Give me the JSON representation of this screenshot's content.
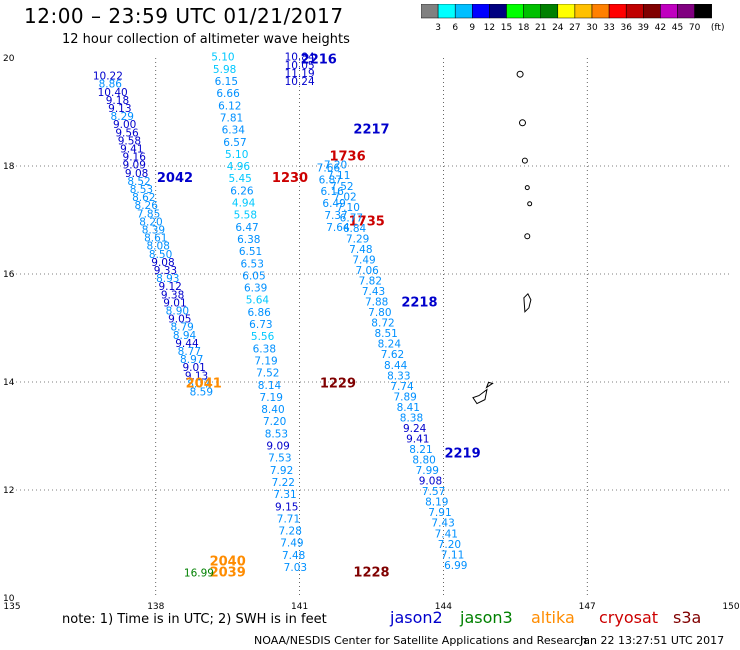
{
  "header": {
    "title": "12:00 – 23:59 UTC 01/21/2017",
    "subtitle": "12 hour collection of altimeter wave heights"
  },
  "legend": {
    "colors": [
      "#808080",
      "#00ffff",
      "#00bfff",
      "#0000ff",
      "#000080",
      "#00ff00",
      "#00c000",
      "#008000",
      "#ffff00",
      "#ffc000",
      "#ff8000",
      "#ff0000",
      "#c00000",
      "#800000",
      "#c000c0",
      "#800080",
      "#000000"
    ],
    "labels": [
      "3",
      "6",
      "9",
      "12",
      "15",
      "18",
      "21",
      "24",
      "27",
      "30",
      "33",
      "36",
      "39",
      "42",
      "45",
      "70",
      "(ft)"
    ]
  },
  "footer": {
    "note": "note: 1) Time is in UTC; 2) SWH is in feet",
    "satellites": [
      {
        "name": "jason2",
        "color": "#0000cc"
      },
      {
        "name": "jason3",
        "color": "#008000"
      },
      {
        "name": "altika",
        "color": "#ff8c00"
      },
      {
        "name": "cryosat",
        "color": "#cc0000"
      },
      {
        "name": "s3a",
        "color": "#800000"
      }
    ],
    "credit": "NOAA/NESDIS Center for Satellite Applications and Research",
    "timestamp": "Jan 22 13:27:51 UTC 2017"
  },
  "chart_data": {
    "type": "scatter",
    "title": "12:00 – 23:59 UTC 01/21/2017",
    "subtitle": "12 hour collection of altimeter wave heights",
    "xlim": [
      135,
      150
    ],
    "ylim": [
      10,
      20
    ],
    "x_ticks": [
      135,
      138,
      141,
      144,
      147,
      150
    ],
    "y_ticks": [
      10,
      12,
      14,
      16,
      18,
      20
    ],
    "grid": true,
    "units": "ft",
    "tracks": [
      {
        "satellite": "jason2",
        "label": "2042",
        "label_pos": [
          138.4,
          17.7
        ],
        "points": [
          [
            137.0,
            19.6,
            "10.22"
          ],
          [
            137.05,
            19.45,
            "8.86"
          ],
          [
            137.1,
            19.3,
            "10.40"
          ],
          [
            137.2,
            19.15,
            "9.18"
          ],
          [
            137.25,
            19.0,
            "9.13"
          ],
          [
            137.3,
            18.85,
            "8.29"
          ],
          [
            137.35,
            18.7,
            "9.00"
          ],
          [
            137.4,
            18.55,
            "9.56"
          ],
          [
            137.45,
            18.4,
            "9.58"
          ],
          [
            137.5,
            18.25,
            "9.41"
          ],
          [
            137.55,
            18.1,
            "9.16"
          ],
          [
            137.55,
            17.95,
            "9.09"
          ],
          [
            137.6,
            17.8,
            "9.08"
          ],
          [
            137.65,
            17.65,
            "8.52"
          ],
          [
            137.7,
            17.5,
            "8.53"
          ],
          [
            137.75,
            17.35,
            "8.62"
          ],
          [
            137.8,
            17.2,
            "8.26"
          ],
          [
            137.85,
            17.05,
            "7.85"
          ],
          [
            137.9,
            16.9,
            "8.20"
          ],
          [
            137.95,
            16.75,
            "8.39"
          ],
          [
            138.0,
            16.6,
            "8.61"
          ],
          [
            138.05,
            16.45,
            "8.08"
          ],
          [
            138.1,
            16.3,
            "8.50"
          ],
          [
            138.15,
            16.15,
            "9.08"
          ],
          [
            138.2,
            16.0,
            "9.33"
          ],
          [
            138.25,
            15.85,
            "8.93"
          ],
          [
            138.3,
            15.7,
            "9.12"
          ],
          [
            138.35,
            15.55,
            "9.38"
          ],
          [
            138.4,
            15.4,
            "9.01"
          ],
          [
            138.45,
            15.25,
            "8.90"
          ],
          [
            138.5,
            15.1,
            "9.05"
          ],
          [
            138.55,
            14.95,
            "8.79"
          ],
          [
            138.6,
            14.8,
            "8.94"
          ],
          [
            138.65,
            14.65,
            "9.44"
          ],
          [
            138.7,
            14.5,
            "8.77"
          ],
          [
            138.75,
            14.35,
            "8.97"
          ],
          [
            138.8,
            14.2,
            "9.01"
          ],
          [
            138.85,
            14.05,
            "9.13"
          ],
          [
            138.9,
            13.9,
            "8.77"
          ],
          [
            138.95,
            13.75,
            "8.59"
          ]
        ]
      },
      {
        "satellite": "altika",
        "label": "2041",
        "label_pos": [
          139.0,
          13.9
        ],
        "points": []
      },
      {
        "satellite": "altika",
        "label": "2040",
        "label_pos": [
          139.5,
          10.6
        ],
        "points": []
      },
      {
        "satellite": "altika",
        "label": "2039",
        "label_pos": [
          139.5,
          10.4
        ],
        "points": []
      },
      {
        "satellite": "jason3",
        "label": "",
        "points": [
          [
            138.9,
            10.4,
            "16.99"
          ]
        ]
      },
      {
        "satellite": "cryosat",
        "label": "1230",
        "label_pos": [
          140.8,
          17.7
        ],
        "points": []
      },
      {
        "satellite": "s3a",
        "label": "1229",
        "label_pos": [
          141.8,
          13.9
        ],
        "points": []
      },
      {
        "satellite": "s3a",
        "label": "1228",
        "label_pos": [
          142.5,
          10.4
        ],
        "points": []
      },
      {
        "satellite": "cryosat",
        "label": "1736",
        "label_pos": [
          142.0,
          18.1
        ],
        "points": []
      },
      {
        "satellite": "cryosat",
        "label": "1735",
        "label_pos": [
          142.4,
          16.9
        ],
        "points": []
      },
      {
        "satellite": "jason2",
        "label": "2216",
        "label_pos": [
          141.4,
          19.9
        ],
        "points": []
      },
      {
        "satellite": "jason2",
        "label": "2217",
        "label_pos": [
          142.5,
          18.6
        ],
        "points": []
      },
      {
        "satellite": "jason2",
        "label": "2218",
        "label_pos": [
          143.5,
          15.4
        ],
        "points": []
      },
      {
        "satellite": "jason2",
        "label": "2219",
        "label_pos": [
          144.4,
          12.6
        ],
        "points": []
      }
    ],
    "track_values": {
      "left_light": [
        "5.10",
        "5.98",
        "6.15",
        "6.66",
        "6.12",
        "7.81",
        "6.34",
        "6.57",
        "5.10",
        "4.96",
        "5.45",
        "6.26",
        "4.94",
        "5.58",
        "6.47",
        "6.38",
        "6.51",
        "6.53",
        "6.05",
        "6.39",
        "5.64",
        "6.86",
        "6.73",
        "5.56",
        "6.38",
        "7.19",
        "7.52",
        "8.14",
        "7.19",
        "8.40",
        "7.20",
        "8.53",
        "9.09",
        "7.53",
        "7.92",
        "7.22",
        "7.31",
        "9.15",
        "7.71",
        "7.28",
        "7.49",
        "7.48",
        "7.03"
      ],
      "top_dark": [
        "10.84",
        "10.05",
        "11.19",
        "10.24"
      ],
      "right_light": [
        "7.20",
        "7.11",
        "7.52",
        "7.02",
        "7.10",
        "6.77",
        "6.84",
        "7.29",
        "7.48",
        "7.49",
        "7.06",
        "7.82",
        "7.43",
        "7.88",
        "7.80",
        "8.72",
        "8.51",
        "8.24",
        "7.62",
        "8.44",
        "8.33",
        "7.74",
        "7.89",
        "8.41",
        "8.38",
        "9.24",
        "9.41",
        "8.21",
        "8.80",
        "7.99",
        "9.08",
        "7.57",
        "8.19",
        "7.91",
        "7.43",
        "7.41",
        "7.20",
        "7.11",
        "6.99"
      ],
      "mid_light": [
        "7.66",
        "6.87",
        "6.16",
        "6.49",
        "7.37",
        "7.64"
      ]
    }
  }
}
